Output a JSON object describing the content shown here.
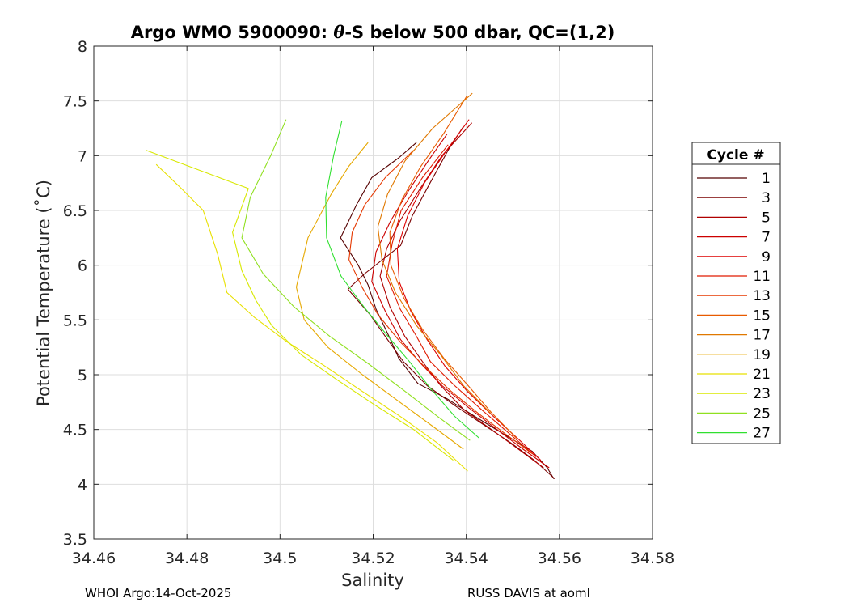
{
  "chart_data": {
    "type": "line",
    "title_parts": [
      "Argo WMO 5900090: ",
      "θ",
      "-S below 500 dbar,  QC=(1,2)"
    ],
    "xlabel": "Salinity",
    "ylabel": "Potential Temperature (˚C)",
    "xlim": [
      34.46,
      34.58
    ],
    "ylim": [
      3.5,
      8
    ],
    "xticks": [
      "34.46",
      "34.48",
      "34.5",
      "34.52",
      "34.54",
      "34.56",
      "34.58"
    ],
    "yticks": [
      "3.5",
      "4",
      "4.5",
      "5",
      "5.5",
      "6",
      "6.5",
      "7",
      "7.5",
      "8"
    ],
    "grid": true,
    "legend": {
      "title": "Cycle #",
      "placement": "right",
      "entries": [
        "1",
        "3",
        "5",
        "7",
        "9",
        "11",
        "13",
        "15",
        "17",
        "19",
        "21",
        "23",
        "25",
        "27"
      ],
      "colors": [
        "#550000",
        "#7a0000",
        "#b00000",
        "#cc0000",
        "#dd0000",
        "#e01a00",
        "#e53800",
        "#e85a00",
        "#e07800",
        "#e6a800",
        "#e8e000",
        "#d8e800",
        "#90e020",
        "#30e030"
      ]
    },
    "series": [
      {
        "name": "1",
        "color": "#550000",
        "x": [
          34.5293,
          34.5255,
          34.5197,
          34.5164,
          34.513,
          34.5168,
          34.5189,
          34.5206,
          34.5234,
          34.5255,
          34.5296,
          34.5359,
          34.5418,
          34.5472,
          34.5542,
          34.5574,
          34.5588
        ],
        "y": [
          7.12,
          6.98,
          6.8,
          6.55,
          6.25,
          6.0,
          5.82,
          5.6,
          5.35,
          5.15,
          4.92,
          4.78,
          4.62,
          4.48,
          4.3,
          4.15,
          4.05
        ]
      },
      {
        "name": "3",
        "color": "#7a0000",
        "x": [
          34.5393,
          34.5361,
          34.5322,
          34.5284,
          34.5259,
          34.5181,
          34.5146,
          34.5193,
          34.5231,
          34.5265,
          34.5316,
          34.5375,
          34.5435,
          34.5495,
          34.5546,
          34.559
        ],
        "y": [
          7.26,
          7.05,
          6.75,
          6.45,
          6.18,
          5.92,
          5.78,
          5.55,
          5.32,
          5.12,
          4.9,
          4.72,
          4.55,
          4.38,
          4.22,
          4.05
        ]
      },
      {
        "name": "5",
        "color": "#b00000",
        "x": [
          34.5412,
          34.5348,
          34.5301,
          34.5257,
          34.5229,
          34.5215,
          34.5236,
          34.5268,
          34.5306,
          34.5345,
          34.5395,
          34.5454,
          34.5512,
          34.5566
        ],
        "y": [
          7.3,
          7.0,
          6.7,
          6.4,
          6.15,
          5.9,
          5.62,
          5.35,
          5.12,
          4.9,
          4.68,
          4.5,
          4.32,
          4.15
        ]
      },
      {
        "name": "7",
        "color": "#cc0000",
        "x": [
          34.5359,
          34.5318,
          34.5276,
          34.5237,
          34.5206,
          34.5197,
          34.5226,
          34.5259,
          34.5303,
          34.5348,
          34.5405,
          34.5466,
          34.5522,
          34.5578
        ],
        "y": [
          7.2,
          6.95,
          6.68,
          6.4,
          6.12,
          5.85,
          5.58,
          5.32,
          5.1,
          4.9,
          4.7,
          4.5,
          4.32,
          4.15
        ]
      },
      {
        "name": "9",
        "color": "#dd0000",
        "x": [
          34.5406,
          34.5358,
          34.531,
          34.5274,
          34.5252,
          34.5256,
          34.5281,
          34.5316,
          34.5354,
          34.5402,
          34.5458,
          34.551,
          34.556
        ],
        "y": [
          7.33,
          7.05,
          6.75,
          6.45,
          6.15,
          5.85,
          5.58,
          5.32,
          5.08,
          4.85,
          4.62,
          4.42,
          4.22
        ]
      },
      {
        "name": "11",
        "color": "#e01a00",
        "x": [
          34.5361,
          34.5306,
          34.526,
          34.5241,
          34.5229,
          34.5258,
          34.5293,
          34.5323,
          34.5375,
          34.5433,
          34.5496,
          34.555
        ],
        "y": [
          7.1,
          6.8,
          6.5,
          6.2,
          5.9,
          5.6,
          5.35,
          5.12,
          4.9,
          4.68,
          4.45,
          4.25
        ]
      },
      {
        "name": "13",
        "color": "#e53800",
        "x": [
          34.5287,
          34.5226,
          34.5182,
          34.5155,
          34.5148,
          34.5176,
          34.521,
          34.5258,
          34.5309,
          34.5367,
          34.5425,
          34.5487,
          34.5541
        ],
        "y": [
          7.05,
          6.8,
          6.55,
          6.3,
          6.05,
          5.8,
          5.55,
          5.3,
          5.08,
          4.85,
          4.65,
          4.45,
          4.28
        ]
      },
      {
        "name": "15",
        "color": "#e85a00",
        "x": [
          34.5402,
          34.5351,
          34.5302,
          34.5262,
          34.5236,
          34.5238,
          34.5266,
          34.5305,
          34.5352,
          34.5404,
          34.5455,
          34.5508
        ],
        "y": [
          7.55,
          7.2,
          6.9,
          6.6,
          6.3,
          6.0,
          5.7,
          5.42,
          5.15,
          4.9,
          4.65,
          4.42
        ]
      },
      {
        "name": "17",
        "color": "#e07800",
        "x": [
          34.5413,
          34.5328,
          34.5268,
          34.5231,
          34.521,
          34.5219,
          34.5248,
          34.5293,
          34.5345,
          34.5394,
          34.5452
        ],
        "y": [
          7.57,
          7.25,
          6.95,
          6.65,
          6.35,
          6.05,
          5.75,
          5.45,
          5.18,
          4.9,
          4.65
        ]
      },
      {
        "name": "19",
        "color": "#e6a800",
        "x": [
          34.5189,
          34.5147,
          34.511,
          34.506,
          34.5035,
          34.5052,
          34.5103,
          34.5177,
          34.5257,
          34.5331,
          34.5394
        ],
        "y": [
          7.12,
          6.9,
          6.65,
          6.25,
          5.8,
          5.5,
          5.25,
          5.0,
          4.75,
          4.52,
          4.32
        ]
      },
      {
        "name": "21",
        "color": "#e8e000",
        "x": [
          34.4734,
          34.4788,
          34.4835,
          34.4866,
          34.4886,
          34.4946,
          34.5015,
          34.5096,
          34.5176,
          34.5258,
          34.5337,
          34.5403
        ],
        "y": [
          6.92,
          6.7,
          6.5,
          6.1,
          5.75,
          5.52,
          5.3,
          5.08,
          4.85,
          4.62,
          4.38,
          4.12
        ]
      },
      {
        "name": "23",
        "color": "#d8e800",
        "x": [
          34.4712,
          34.4932,
          34.4898,
          34.4918,
          34.4948,
          34.4982,
          34.5046,
          34.5124,
          34.5205,
          34.5287,
          34.5372
        ],
        "y": [
          7.05,
          6.7,
          6.3,
          5.95,
          5.68,
          5.45,
          5.18,
          4.95,
          4.72,
          4.5,
          4.22
        ]
      },
      {
        "name": "25",
        "color": "#90e020",
        "x": [
          34.5013,
          34.498,
          34.4936,
          34.4918,
          34.4964,
          34.503,
          34.5107,
          34.519,
          34.5268,
          34.5338,
          34.5408
        ],
        "y": [
          7.33,
          7.0,
          6.62,
          6.25,
          5.92,
          5.62,
          5.35,
          5.1,
          4.85,
          4.62,
          4.4
        ]
      },
      {
        "name": "27",
        "color": "#30e030",
        "x": [
          34.5133,
          34.5115,
          34.5098,
          34.51,
          34.5131,
          34.518,
          34.5232,
          34.5278,
          34.5322,
          34.5375,
          34.5428
        ],
        "y": [
          7.32,
          7.0,
          6.62,
          6.25,
          5.9,
          5.62,
          5.35,
          5.12,
          4.88,
          4.62,
          4.42
        ]
      }
    ]
  },
  "footer": {
    "left": "WHOI Argo:14-Oct-2025",
    "right": "RUSS DAVIS at aoml"
  }
}
